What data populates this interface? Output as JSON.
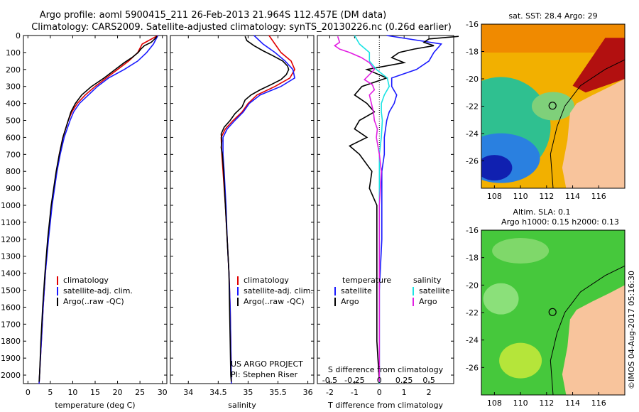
{
  "title": {
    "line1": "Argo profile: aoml 5900415_211 26-Feb-2013 21.964S 112.457E (DM data)",
    "line2": "Climatology: CARS2009. Satellite-adjusted climatology: synTS_20130226.nc (0.26d earlier)"
  },
  "colors": {
    "climatology": "#e00000",
    "satellite": "#1a1aff",
    "argo": "#000000",
    "sat_s": "#19e3e3",
    "argo_s": "#e21fe2",
    "land": "#f8c49c"
  },
  "depth_axis": {
    "range": [
      0,
      2050
    ],
    "ticks": [
      0,
      100,
      200,
      300,
      400,
      500,
      600,
      700,
      800,
      900,
      1000,
      1100,
      1200,
      1300,
      1400,
      1500,
      1600,
      1700,
      1800,
      1900,
      2000
    ]
  },
  "chart_data": [
    {
      "type": "line",
      "id": "temperature",
      "xlabel": "temperature (deg C)",
      "xlim": [
        -1,
        31
      ],
      "xticks": [
        0,
        5,
        10,
        15,
        20,
        25,
        30
      ],
      "legend": [
        "climatology",
        "satellite-adj. clim.",
        "Argo(..raw -QC)"
      ],
      "legend_placement": "lower-right",
      "series": [
        {
          "name": "climatology",
          "color": "#e00000",
          "depth": [
            0,
            50,
            100,
            150,
            200,
            250,
            300,
            350,
            400,
            450,
            500,
            600,
            700,
            800,
            1000,
            1200,
            1400,
            1600,
            1800,
            2000,
            2050
          ],
          "values": [
            29.0,
            25.5,
            24.5,
            22.5,
            20.0,
            17.5,
            15.0,
            12.8,
            11.0,
            9.8,
            9.0,
            7.8,
            7.0,
            6.4,
            5.3,
            4.5,
            3.9,
            3.4,
            3.0,
            2.6,
            2.5
          ]
        },
        {
          "name": "satellite-adj. clim.",
          "color": "#1a1aff",
          "depth": [
            0,
            50,
            100,
            150,
            200,
            250,
            300,
            350,
            400,
            450,
            500,
            600,
            700,
            800,
            1000,
            1200,
            1400,
            1600,
            1800,
            2000,
            2050
          ],
          "values": [
            29.0,
            28.0,
            26.5,
            24.5,
            21.5,
            18.0,
            15.5,
            13.5,
            11.5,
            10.2,
            9.4,
            8.1,
            7.2,
            6.5,
            5.4,
            4.6,
            3.9,
            3.4,
            3.0,
            2.6,
            2.5
          ]
        },
        {
          "name": "Argo(..raw -QC)",
          "color": "#000000",
          "depth": [
            5,
            20,
            40,
            60,
            80,
            100,
            130,
            160,
            200,
            250,
            300,
            350,
            400,
            450,
            500,
            600,
            700,
            800,
            1000,
            1200,
            1400,
            1600,
            1800,
            2000,
            2040
          ],
          "values": [
            28.8,
            28.3,
            27.5,
            26.0,
            25.2,
            24.6,
            23.2,
            21.5,
            19.5,
            17.0,
            14.2,
            12.0,
            10.6,
            9.6,
            9.0,
            7.8,
            7.0,
            6.3,
            5.2,
            4.4,
            3.8,
            3.3,
            2.9,
            2.6,
            2.5
          ]
        }
      ]
    },
    {
      "type": "line",
      "id": "salinity",
      "xlabel": "salinity",
      "xlim": [
        33.7,
        36.1
      ],
      "xticks": [
        34,
        34.5,
        35,
        35.5,
        36
      ],
      "xticklabels": [
        "34",
        "34.5",
        "35",
        "35.5",
        "36"
      ],
      "legend": [
        "climatology",
        "satellite-adj. clim.",
        "Argo(..raw -QC)"
      ],
      "legend_placement": "lower-right",
      "annotation": [
        "US ARGO PROJECT",
        "PI: Stephen Riser"
      ],
      "series": [
        {
          "name": "climatology",
          "color": "#e00000",
          "depth": [
            0,
            50,
            100,
            150,
            200,
            250,
            300,
            350,
            400,
            450,
            500,
            550,
            600,
            700,
            800,
            1000,
            1200,
            1400,
            1600,
            1800,
            2000,
            2050
          ],
          "values": [
            35.35,
            35.45,
            35.55,
            35.72,
            35.78,
            35.7,
            35.45,
            35.15,
            35.0,
            34.9,
            34.75,
            34.62,
            34.55,
            34.56,
            34.58,
            34.62,
            34.65,
            34.68,
            34.7,
            34.71,
            34.72,
            34.72
          ]
        },
        {
          "name": "satellite-adj. clim.",
          "color": "#1a1aff",
          "depth": [
            0,
            50,
            100,
            150,
            200,
            250,
            300,
            350,
            400,
            450,
            500,
            550,
            600,
            700,
            800,
            1000,
            1200,
            1400,
            1600,
            1800,
            2000,
            2050
          ],
          "values": [
            35.1,
            35.25,
            35.45,
            35.62,
            35.75,
            35.78,
            35.55,
            35.2,
            35.02,
            34.92,
            34.78,
            34.65,
            34.58,
            34.58,
            34.6,
            34.63,
            34.65,
            34.68,
            34.7,
            34.71,
            34.72,
            34.72
          ]
        },
        {
          "name": "Argo(..raw -QC)",
          "color": "#000000",
          "depth": [
            5,
            30,
            60,
            90,
            120,
            150,
            180,
            200,
            230,
            260,
            290,
            320,
            350,
            380,
            420,
            460,
            500,
            540,
            580,
            620,
            660,
            700,
            800,
            1000,
            1200,
            1400,
            1600,
            1800,
            2000,
            2040
          ],
          "values": [
            34.95,
            34.98,
            35.1,
            35.25,
            35.42,
            35.58,
            35.66,
            35.68,
            35.64,
            35.55,
            35.38,
            35.2,
            35.05,
            34.95,
            34.9,
            34.78,
            34.7,
            34.6,
            34.55,
            34.56,
            34.55,
            34.57,
            34.59,
            34.62,
            34.65,
            34.68,
            34.69,
            34.7,
            34.71,
            34.72
          ]
        }
      ]
    },
    {
      "type": "line",
      "id": "difference",
      "xlabel": "T difference from climatology",
      "xlabel_top": "S difference from climatology",
      "xlim": [
        -2.5,
        3.0
      ],
      "xticks": [
        -2,
        -1,
        0,
        1,
        2
      ],
      "xticklabels": [
        "-2",
        "-1",
        "0",
        "1",
        "2"
      ],
      "s_ticks": [
        -0.5,
        -0.25,
        0,
        0.25,
        0.5
      ],
      "s_ticklabels": [
        "-0.5",
        "-0.25",
        "0",
        "0.25",
        "0.5"
      ],
      "legend_groups": [
        {
          "title": "temperature",
          "items": [
            {
              "label": "satellite",
              "color": "#1a1aff"
            },
            {
              "label": "Argo",
              "color": "#000000"
            }
          ]
        },
        {
          "title": "salinity",
          "items": [
            {
              "label": "satellite",
              "color": "#19e3e3"
            },
            {
              "label": "Argo",
              "color": "#e21fe2"
            }
          ]
        }
      ],
      "series": [
        {
          "name": "T satellite",
          "color": "#1a1aff",
          "depth": [
            0,
            50,
            100,
            150,
            200,
            250,
            300,
            350,
            400,
            450,
            500,
            600,
            700,
            800,
            1000,
            1200,
            1500,
            1800,
            2050
          ],
          "values": [
            0.3,
            2.5,
            2.2,
            2.0,
            1.5,
            0.5,
            0.5,
            0.7,
            0.6,
            0.4,
            0.3,
            0.2,
            0.2,
            0.1,
            0.1,
            0.1,
            0.0,
            0.0,
            0.0
          ]
        },
        {
          "name": "T Argo",
          "color": "#000000",
          "depth": [
            5,
            20,
            40,
            60,
            80,
            100,
            130,
            160,
            200,
            250,
            300,
            350,
            400,
            450,
            500,
            550,
            600,
            650,
            700,
            800,
            900,
            1000,
            1200,
            1500,
            1800,
            2040
          ],
          "values": [
            3.2,
            2.0,
            1.8,
            2.2,
            1.4,
            0.8,
            0.5,
            1.0,
            -0.5,
            0.3,
            -0.7,
            -1.0,
            -0.5,
            -0.2,
            -0.8,
            -1.0,
            -0.5,
            -1.2,
            -0.8,
            -0.3,
            -0.4,
            -0.1,
            -0.1,
            -0.1,
            -0.1,
            0.0
          ]
        },
        {
          "name": "S satellite",
          "color": "#19e3e3",
          "depth": [
            0,
            50,
            100,
            150,
            200,
            250,
            300,
            350,
            400,
            450,
            500,
            600,
            700,
            800,
            1000,
            1200,
            1500,
            1800,
            2050
          ],
          "values": [
            -0.25,
            -0.2,
            -0.1,
            -0.1,
            -0.03,
            0.08,
            0.1,
            0.05,
            0.02,
            0.02,
            0.03,
            0.02,
            0.0,
            0.0,
            0.0,
            0.0,
            0.0,
            0.0,
            0.0
          ]
        },
        {
          "name": "S Argo",
          "color": "#e21fe2",
          "depth": [
            5,
            40,
            60,
            80,
            100,
            130,
            160,
            200,
            230,
            260,
            290,
            320,
            350,
            400,
            450,
            500,
            550,
            600,
            700,
            800,
            1000,
            1200,
            1500,
            1800,
            2040
          ],
          "values": [
            -0.42,
            -0.4,
            -0.45,
            -0.4,
            -0.3,
            -0.18,
            -0.1,
            -0.05,
            -0.1,
            -0.15,
            -0.07,
            -0.05,
            -0.1,
            -0.08,
            -0.06,
            -0.05,
            -0.02,
            -0.03,
            0.0,
            0.02,
            0.0,
            0.0,
            0.0,
            0.0,
            0.0
          ]
        }
      ]
    }
  ],
  "map_top": {
    "title": "sat. SST: 28.4 Argo: 29",
    "lon_ticks": [
      108,
      110,
      112,
      114,
      116
    ],
    "lat_ticks": [
      -16,
      -18,
      -20,
      -22,
      -24,
      -26
    ],
    "lat_labels": [
      "-16",
      "-18",
      "-20",
      "-22",
      "-24",
      "-26"
    ],
    "lon": [
      107,
      118
    ],
    "lat": [
      -28,
      -16
    ],
    "marker": {
      "lon": 112.457,
      "lat": -21.964
    }
  },
  "map_bottom": {
    "title_line1": "Altim. SLA: 0.1",
    "title_line2": "Argo h1000: 0.15 h2000: 0.13",
    "lon_ticks": [
      108,
      110,
      112,
      114,
      116
    ],
    "lat_ticks": [
      -16,
      -18,
      -20,
      -22,
      -24,
      -26
    ],
    "lat_labels": [
      "-16",
      "-18",
      "-20",
      "-22",
      "-24",
      "-26"
    ],
    "lon": [
      107,
      118
    ],
    "lat": [
      -28,
      -16
    ],
    "marker": {
      "lon": 112.457,
      "lat": -21.964
    }
  },
  "stamp": "©IMOS 04-Aug-2017 05:16:30"
}
